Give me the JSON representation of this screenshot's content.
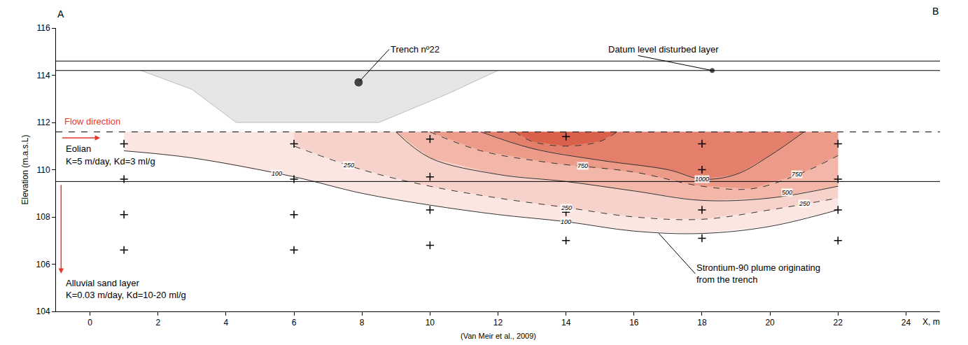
{
  "chart_data": {
    "type": "cross_section",
    "title_left": "A",
    "title_right": "B",
    "xlabel": "X, m",
    "ylabel": "Elevation (m.a.s.L)",
    "caption": "(Van Meir et al., 2009)",
    "xlim": [
      -1,
      25
    ],
    "ylim": [
      104,
      116
    ],
    "xticks": [
      0,
      2,
      4,
      6,
      8,
      10,
      12,
      14,
      16,
      18,
      20,
      22,
      24
    ],
    "yticks": [
      104,
      106,
      108,
      110,
      112,
      114,
      116
    ],
    "grid": false,
    "datum_lines": [
      114.6,
      114.2
    ],
    "water_table": 111.6,
    "layer_boundary": 109.5,
    "trench": {
      "x": [
        1.5,
        3,
        4.3,
        8.5,
        10.5,
        12
      ],
      "y": [
        114.2,
        113.4,
        112,
        112,
        113.2,
        114.2
      ],
      "color": "#e6e6e6",
      "point": [
        7.9,
        113.7
      ]
    },
    "datum_point": [
      18.3,
      114.2
    ],
    "contours": [
      {
        "line_style": "solid",
        "color": "#fbe6e2",
        "x": [
          1,
          3,
          6,
          8,
          10,
          12,
          14,
          16,
          18,
          20,
          22
        ],
        "y": [
          110.8,
          110.5,
          109.7,
          109.0,
          108.5,
          108.1,
          107.8,
          107.4,
          107.3,
          107.6,
          108.3
        ]
      },
      {
        "line_style": "dashed",
        "color": "#f7d2ca",
        "x": [
          6,
          8,
          10,
          12,
          14,
          16,
          18,
          20,
          22
        ],
        "y": [
          111.0,
          110.0,
          109.3,
          108.8,
          108.4,
          108.0,
          107.9,
          108.3,
          108.8
        ]
      },
      {
        "line_style": "solid",
        "color": "#f2b7a9",
        "x": [
          9,
          10,
          12,
          14,
          16,
          18,
          20,
          22
        ],
        "y": [
          111.6,
          110.5,
          109.8,
          109.5,
          109.1,
          108.7,
          108.8,
          109.3
        ]
      },
      {
        "line_style": "dashed",
        "color": "#ec9b89",
        "x": [
          10,
          11.5,
          13.5,
          16,
          18,
          19.5,
          21,
          22
        ],
        "y": [
          111.6,
          110.8,
          110.3,
          109.9,
          109.3,
          109.2,
          109.9,
          110.6
        ]
      },
      {
        "line_style": "solid",
        "color": "#e37f6b",
        "x": [
          11.5,
          13,
          15,
          17,
          18,
          19,
          20,
          21
        ],
        "y": [
          111.6,
          110.9,
          110.4,
          110.0,
          109.6,
          109.8,
          110.6,
          111.6
        ]
      },
      {
        "line_style": "dashed",
        "color": "#d9604b",
        "x": [
          12.5,
          13,
          14,
          15,
          15.5
        ],
        "y": [
          111.6,
          111.2,
          111.0,
          111.2,
          111.6
        ]
      }
    ],
    "contour_labels": [
      {
        "text": "100",
        "x": 5.5,
        "y": 109.85
      },
      {
        "text": "100",
        "x": 14,
        "y": 107.8
      },
      {
        "text": "250",
        "x": 7.6,
        "y": 110.2
      },
      {
        "text": "250",
        "x": 14,
        "y": 108.4
      },
      {
        "text": "250",
        "x": 21,
        "y": 108.55
      },
      {
        "text": "500",
        "x": 20.5,
        "y": 109.05
      },
      {
        "text": "750",
        "x": 14.5,
        "y": 110.15
      },
      {
        "text": "750",
        "x": 20.8,
        "y": 109.8
      },
      {
        "text": "1000",
        "x": 18,
        "y": 109.6
      }
    ],
    "samples": {
      "marker": "cross",
      "x": [
        1,
        1,
        1,
        1,
        6,
        6,
        6,
        6,
        10,
        10,
        10,
        10,
        14,
        14,
        14,
        18,
        18,
        18,
        18,
        22,
        22,
        22,
        22
      ],
      "y": [
        111.1,
        109.6,
        108.1,
        106.6,
        111.1,
        109.6,
        108.1,
        106.6,
        111.3,
        109.7,
        108.3,
        106.8,
        111.4,
        108.2,
        107.0,
        111.1,
        110.0,
        108.3,
        107.1,
        111.1,
        109.6,
        108.3,
        107.0
      ]
    },
    "labels": [
      {
        "text": "Trench nº22",
        "x": 8.8,
        "y": 115.1,
        "color": "#000000",
        "arrow_to": [
          7.9,
          113.7
        ]
      },
      {
        "text": "Datum level disturbed layer",
        "x": 15.2,
        "y": 115.1,
        "color": "#000000",
        "arrow_to": [
          18.3,
          114.2
        ]
      },
      {
        "text": "Flow direction",
        "x": -0.8,
        "y": 112.05,
        "color": "#e8372b"
      },
      {
        "text": "Eolian",
        "x": -0.75,
        "y": 110.9,
        "color": "#000000"
      },
      {
        "text": "K=5 m/day, Kd=3 ml/g",
        "x": -0.75,
        "y": 110.35,
        "color": "#000000"
      },
      {
        "text": "Alluvial sand layer",
        "x": -0.75,
        "y": 105.2,
        "color": "#000000"
      },
      {
        "text": "K=0.03 m/day, Kd=10-20 ml/g",
        "x": -0.75,
        "y": 104.7,
        "color": "#000000"
      },
      {
        "text": [
          "Strontium-90 plume originating",
          "from the trench"
        ],
        "x": 17.8,
        "y": 105.6,
        "color": "#000000",
        "arrow_to": [
          16.7,
          107.35
        ]
      }
    ]
  }
}
